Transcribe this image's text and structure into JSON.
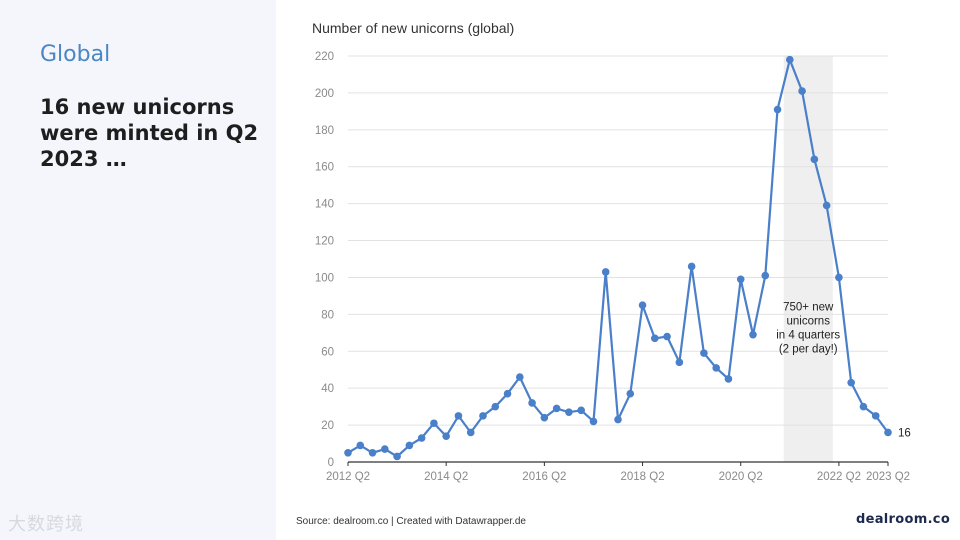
{
  "slide": {
    "section": "Global",
    "headline": "16 new unicorns were minted in Q2 2023 …",
    "source": "Source: dealroom.co | Created with Datawrapper.de",
    "logo": "dealroom.co",
    "watermark": "大数跨境"
  },
  "chart_data": {
    "type": "line",
    "title": "Number of new unicorns (global)",
    "xlabel": "",
    "ylabel": "",
    "ylim": [
      0,
      220
    ],
    "y_ticks": [
      0,
      20,
      40,
      60,
      80,
      100,
      120,
      140,
      160,
      180,
      200,
      220
    ],
    "x_tick_labels": [
      {
        "index": 0,
        "label": "2012 Q2"
      },
      {
        "index": 8,
        "label": "2014 Q2"
      },
      {
        "index": 16,
        "label": "2016 Q2"
      },
      {
        "index": 24,
        "label": "2018 Q2"
      },
      {
        "index": 32,
        "label": "2020 Q2"
      },
      {
        "index": 40,
        "label": "2022 Q2"
      },
      {
        "index": 44,
        "label": "2023 Q2"
      }
    ],
    "grid": true,
    "line_color": "#4a7fc9",
    "highlight": {
      "from_index": 35.5,
      "to_index": 39.5,
      "color": "#efefef"
    },
    "annotation": "750+ new unicorns in 4 quarters (2 per day!)",
    "annotation_lines": [
      "750+ new",
      "unicorns",
      "in 4 quarters",
      "(2 per day!)"
    ],
    "end_label": "16",
    "series": [
      {
        "values": [
          5,
          9,
          5,
          7,
          3,
          9,
          13,
          21,
          14,
          25,
          16,
          25,
          30,
          37,
          46,
          32,
          24,
          29,
          27,
          28,
          22,
          103,
          23,
          37,
          85,
          67,
          68,
          54,
          106,
          59,
          51,
          45,
          99,
          69,
          101,
          191,
          218,
          201,
          164,
          139,
          100,
          43,
          30,
          25,
          16
        ]
      }
    ]
  }
}
